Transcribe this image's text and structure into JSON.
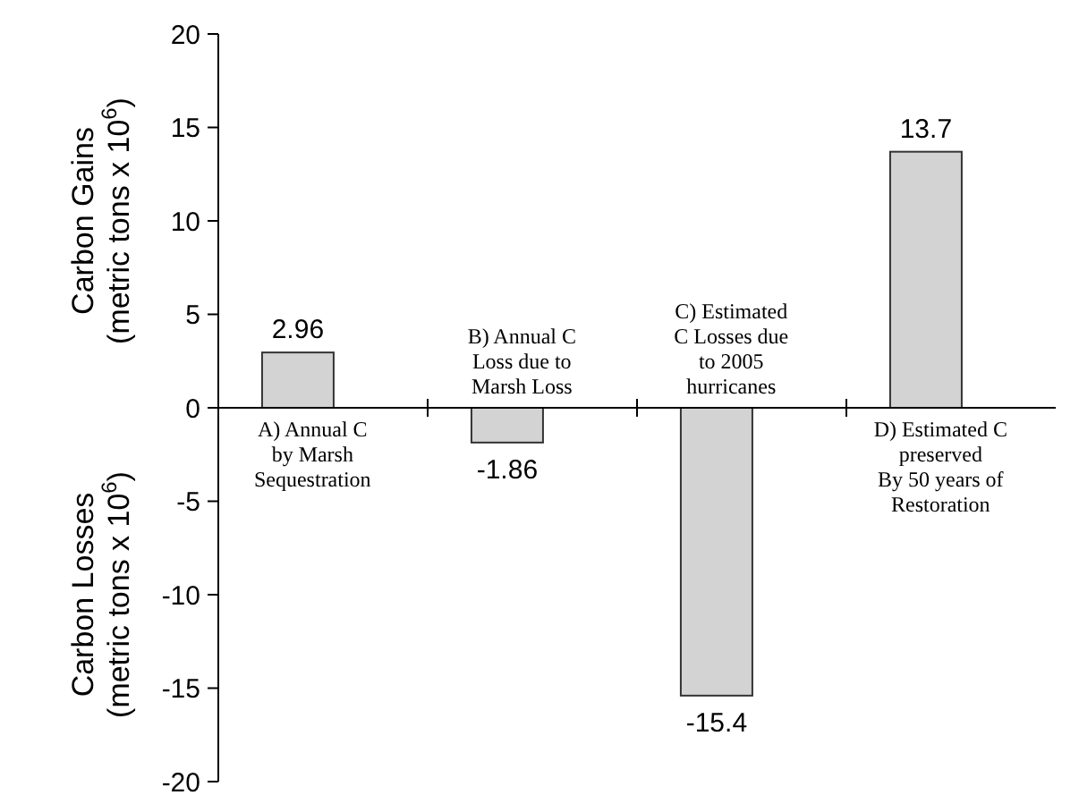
{
  "chart_data": {
    "type": "bar",
    "categories": [
      "A) Annual C\nby Marsh\nSequestration",
      "B) Annual C\nLoss due to\nMarsh Loss",
      "C) Estimated\nC Losses due\nto 2005\nhurricanes",
      "D) Estimated C\npreserved\nBy 50 years of\nRestoration"
    ],
    "values": [
      2.96,
      -1.86,
      -15.4,
      13.7
    ],
    "color": "#d3d3d3",
    "data_labels": true,
    "ylabel": "Carbon Gains\n(metric tons x 10$^{6}$)",
    "annotations": [
      "Carbon Losses\n(metric tons x 10$^{6}$)"
    ],
    "ylim": [
      -20,
      20
    ],
    "yticks": [
      -20,
      -15,
      -10,
      -5,
      0,
      5,
      10,
      15,
      20
    ],
    "grid": false
  }
}
